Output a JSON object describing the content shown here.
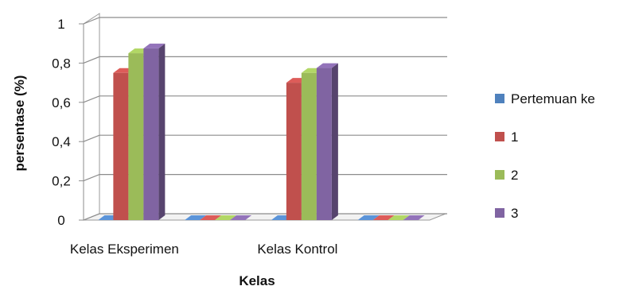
{
  "chart_data": {
    "type": "bar",
    "title": "",
    "xlabel": "Kelas",
    "ylabel": "persentase (%)",
    "ylim": [
      0,
      1
    ],
    "yticks": [
      "0",
      "0,2",
      "0,4",
      "0,6",
      "0,8",
      "1"
    ],
    "categories": [
      "Kelas Eksperimen",
      "",
      "Kelas Kontrol",
      ""
    ],
    "series": [
      {
        "name": "Pertemuan ke",
        "color": "#4f81bd",
        "values": [
          0,
          0,
          0,
          0
        ]
      },
      {
        "name": "1",
        "color": "#c0504d",
        "values": [
          0.75,
          0,
          0.7,
          0
        ]
      },
      {
        "name": "2",
        "color": "#9bbb59",
        "values": [
          0.85,
          0,
          0.75,
          0
        ]
      },
      {
        "name": "3",
        "color": "#8064a2",
        "values": [
          0.875,
          0,
          0.775,
          0
        ]
      }
    ],
    "grid": true,
    "style": "3d-clustered-column",
    "legend_position": "right"
  }
}
